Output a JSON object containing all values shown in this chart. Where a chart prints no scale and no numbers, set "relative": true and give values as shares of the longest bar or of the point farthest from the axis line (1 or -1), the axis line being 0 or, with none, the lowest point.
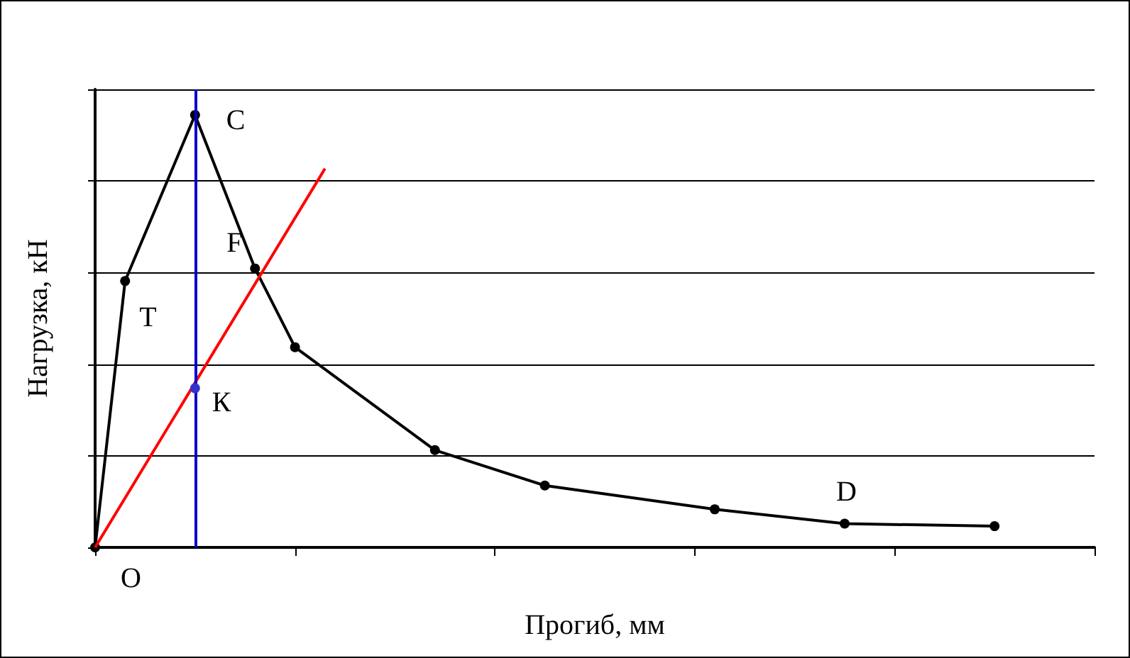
{
  "chart_data": {
    "type": "line",
    "relative": true,
    "xlabel": "Прогиб, мм",
    "ylabel": "Нагрузка, кН",
    "categories": [
      null,
      null,
      null,
      null,
      null,
      null,
      null,
      null,
      null,
      null,
      null,
      null,
      null,
      null,
      null,
      null,
      null,
      null,
      null,
      null,
      null,
      null,
      null,
      null,
      null,
      null,
      null,
      null,
      null,
      null,
      null,
      null,
      null,
      null,
      null,
      null,
      null,
      null,
      null,
      null,
      null,
      null,
      null,
      null,
      null,
      null,
      null,
      null,
      null,
      null,
      null,
      null,
      null,
      null,
      null,
      null,
      null,
      null,
      null,
      null,
      null,
      null,
      null,
      null,
      null,
      null,
      null,
      null,
      null,
      null,
      null,
      null,
      null,
      null,
      null,
      null,
      null,
      null,
      null,
      null,
      null,
      null,
      null,
      null,
      null,
      null,
      null,
      null,
      null,
      null,
      null,
      null,
      null,
      null,
      null,
      null,
      null,
      null,
      null,
      null,
      null
    ],
    "grid": "y",
    "marker": "circle",
    "line_style": "solid",
    "series": [
      {
        "color": "#000000",
        "values": [
          0,
          null,
          null,
          0.616,
          null,
          null,
          null,
          null,
          null,
          null,
          1,
          null,
          null,
          null,
          null,
          null,
          0.645,
          null,
          null,
          null,
          0.463,
          null,
          null,
          null,
          null,
          null,
          null,
          null,
          null,
          null,
          null,
          null,
          null,
          null,
          0.225,
          null,
          null,
          null,
          null,
          null,
          null,
          null,
          null,
          null,
          null,
          0.143,
          null,
          null,
          null,
          null,
          null,
          null,
          null,
          null,
          null,
          null,
          null,
          null,
          null,
          null,
          null,
          null,
          0.088,
          null,
          null,
          null,
          null,
          null,
          null,
          null,
          null,
          null,
          null,
          null,
          null,
          0.055,
          null,
          null,
          null,
          null,
          null,
          null,
          null,
          null,
          null,
          null,
          null,
          null,
          null,
          null,
          0.049,
          null,
          null,
          null,
          null,
          null,
          null,
          null,
          null,
          null,
          null
        ]
      },
      {
        "type": "line",
        "color": "#ff0000",
        "marker": "none",
        "values": [
          0,
          null,
          null,
          null,
          null,
          null,
          null,
          null,
          null,
          null,
          null,
          null,
          null,
          null,
          null,
          null,
          null,
          null,
          null,
          null,
          null,
          null,
          null,
          0.876,
          null,
          null,
          null,
          null,
          null,
          null,
          null,
          null,
          null,
          null,
          null,
          null,
          null,
          null,
          null,
          null,
          null,
          null,
          null,
          null,
          null,
          null,
          null,
          null,
          null,
          null,
          null,
          null,
          null,
          null,
          null,
          null,
          null,
          null,
          null,
          null,
          null,
          null,
          null,
          null,
          null,
          null,
          null,
          null,
          null,
          null,
          null,
          null,
          null,
          null,
          null,
          null,
          null,
          null,
          null,
          null,
          null,
          null,
          null,
          null,
          null,
          null,
          null,
          null,
          null,
          null,
          null,
          null,
          null,
          null,
          null,
          null,
          null,
          null,
          null,
          null,
          null
        ]
      },
      {
        "type": "line",
        "color": "#3333cc",
        "values": [
          null,
          null,
          null,
          null,
          null,
          null,
          null,
          null,
          null,
          null,
          0.368,
          null,
          null,
          null,
          null,
          null,
          null,
          null,
          null,
          null,
          null,
          null,
          null,
          null,
          null,
          null,
          null,
          null,
          null,
          null,
          null,
          null,
          null,
          null,
          null,
          null,
          null,
          null,
          null,
          null,
          null,
          null,
          null,
          null,
          null,
          null,
          null,
          null,
          null,
          null,
          null,
          null,
          null,
          null,
          null,
          null,
          null,
          null,
          null,
          null,
          null,
          null,
          null,
          null,
          null,
          null,
          null,
          null,
          null,
          null,
          null,
          null,
          null,
          null,
          null,
          null,
          null,
          null,
          null,
          null,
          null,
          null,
          null,
          null,
          null,
          null,
          null,
          null,
          null,
          null,
          null,
          null,
          null,
          null,
          null,
          null,
          null,
          null,
          null,
          null,
          null
        ]
      }
    ],
    "annotations": [
      "O",
      "T",
      "C",
      "F",
      "К",
      "D"
    ]
  }
}
